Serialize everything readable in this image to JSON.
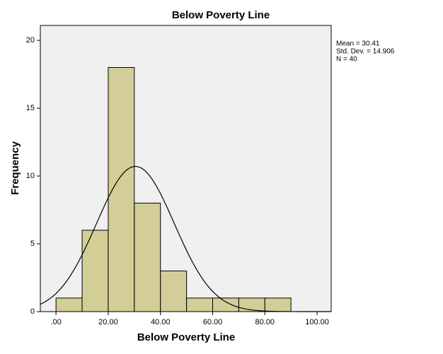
{
  "chart_data": {
    "type": "histogram",
    "title": "Below Poverty Line",
    "x_label": "Below Poverty Line",
    "y_label": "Frequency",
    "bins": [
      0,
      10,
      20,
      30,
      40,
      50,
      60,
      70,
      80,
      90
    ],
    "values": [
      1,
      6,
      18,
      8,
      3,
      1,
      1,
      1,
      1
    ],
    "color": "#d3ce97",
    "xlim": [
      -6,
      105.4
    ],
    "ylim": [
      0,
      21.1
    ],
    "xticks": [
      {
        "value": 0,
        "label": ".00"
      },
      {
        "value": 20,
        "label": "20.00"
      },
      {
        "value": 40,
        "label": "40.00"
      },
      {
        "value": 60,
        "label": "60.00"
      },
      {
        "value": 80,
        "label": "80.00"
      },
      {
        "value": 100,
        "label": "100.00"
      }
    ],
    "yticks": [
      0,
      5,
      10,
      15,
      20
    ],
    "normal_curve": true,
    "stats": [
      {
        "value": 30.41,
        "label": "Mean = 30.41"
      },
      {
        "value": 14.906,
        "label": "Std. Dev. = 14.906"
      },
      {
        "value": 40,
        "label": "N = 40"
      }
    ]
  }
}
